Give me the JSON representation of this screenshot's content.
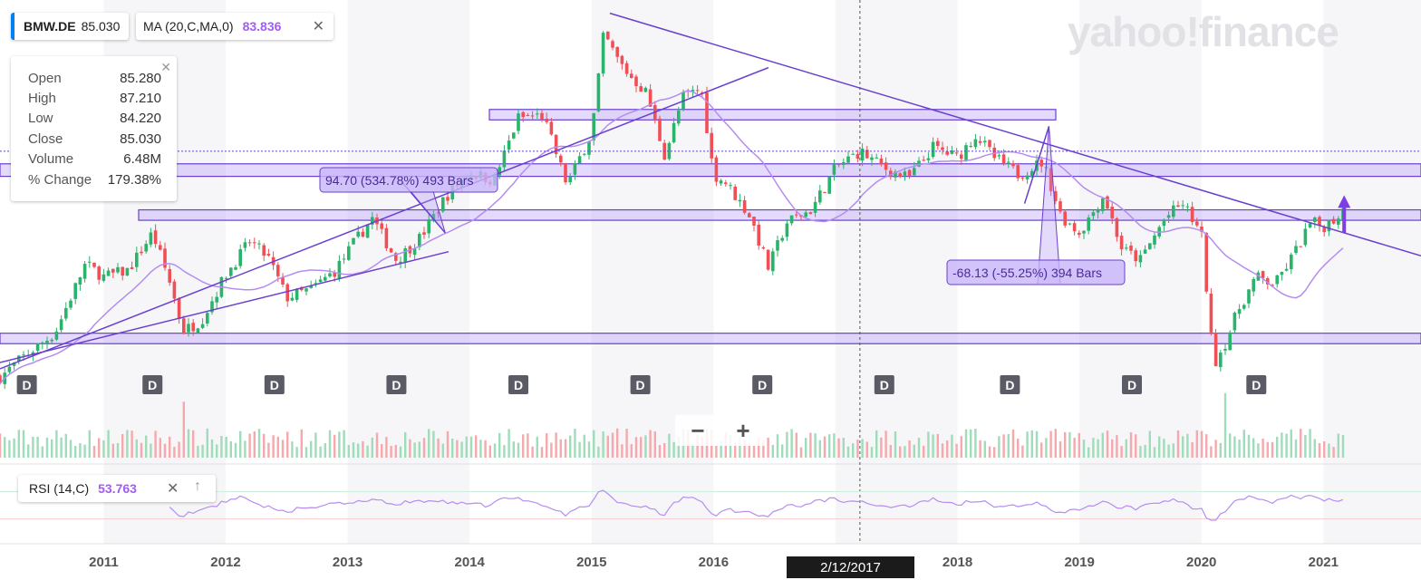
{
  "symbol": {
    "ticker": "BMW.DE",
    "price": "85.030"
  },
  "ma": {
    "label": "MA (20,C,MA,0)",
    "value": "83.836"
  },
  "ohlc": [
    {
      "label": "Open",
      "value": "85.280"
    },
    {
      "label": "High",
      "value": "87.210"
    },
    {
      "label": "Low",
      "value": "84.220"
    },
    {
      "label": "Close",
      "value": "85.030"
    },
    {
      "label": "Volume",
      "value": "6.48M"
    },
    {
      "label": "% Change",
      "value": "179.38%"
    }
  ],
  "rsi": {
    "label": "RSI (14,C)",
    "value": "53.763"
  },
  "brand": "yahoo!finance",
  "zoom": {
    "minus": "−",
    "plus": "+"
  },
  "crosshair_date": "2/12/2017",
  "icons": {
    "close": "close-icon",
    "up": "arrow-up-icon"
  },
  "colors": {
    "up": "#2ab36a",
    "down": "#f04f55",
    "ma": "#b58df0",
    "drawing": "#6a3fd0",
    "zone": "rgba(179,150,245,0.35)"
  },
  "chart_data": {
    "type": "candlestick",
    "title": "",
    "xlabel": "",
    "ylabel": "",
    "x_range": [
      2010.15,
      2021.8
    ],
    "ylim": [
      -2,
      180
    ],
    "x_tick_labels": [
      "2011",
      "2012",
      "2013",
      "2014",
      "2015",
      "2016",
      "2017",
      "2018",
      "2019",
      "2020",
      "2021"
    ],
    "x_ticks": [
      2011,
      2012,
      2013,
      2014,
      2015,
      2016,
      2017,
      2018,
      2019,
      2020,
      2021
    ],
    "close_series": {
      "name": "",
      "x": [
        2010.15,
        2010.35,
        2010.6,
        2010.85,
        2011.0,
        2011.2,
        2011.4,
        2011.55,
        2011.65,
        2011.8,
        2012.0,
        2012.2,
        2012.35,
        2012.5,
        2012.7,
        2012.9,
        2013.05,
        2013.2,
        2013.4,
        2013.6,
        2013.8,
        2014.0,
        2014.2,
        2014.4,
        2014.6,
        2014.8,
        2015.0,
        2015.1,
        2015.2,
        2015.3,
        2015.45,
        2015.6,
        2015.75,
        2015.9,
        2016.0,
        2016.1,
        2016.3,
        2016.45,
        2016.6,
        2016.8,
        2017.0,
        2017.2,
        2017.4,
        2017.6,
        2017.8,
        2018.0,
        2018.15,
        2018.3,
        2018.5,
        2018.7,
        2018.85,
        2019.0,
        2019.2,
        2019.35,
        2019.5,
        2019.7,
        2019.85,
        2020.0,
        2020.1,
        2020.2,
        2020.3,
        2020.45,
        2020.6,
        2020.75,
        2020.9,
        2021.0,
        2021.1,
        2021.18
      ],
      "y": [
        4,
        14,
        25,
        58,
        52,
        55,
        73,
        48,
        26,
        31,
        53,
        69,
        61,
        42,
        46,
        55,
        68,
        80,
        60,
        71,
        90,
        102,
        98,
        128,
        129,
        96,
        121,
        168,
        157,
        149,
        140,
        110,
        138,
        142,
        101,
        97,
        81,
        56,
        78,
        84,
        104,
        112,
        104,
        99,
        114,
        109,
        120,
        109,
        101,
        107,
        81,
        73,
        91,
        65,
        60,
        80,
        87,
        72,
        10,
        21,
        36,
        52,
        48,
        62,
        78,
        76,
        80,
        85.03
      ]
    },
    "ma_series": {
      "name": "MA (20,C,MA,0)",
      "last": 83.836
    },
    "horizontal_lines": [
      {
        "y": 112
      }
    ],
    "zones": [
      [
        100,
        106
      ],
      [
        79,
        84
      ],
      [
        20,
        25
      ],
      [
        127,
        132
      ]
    ],
    "trendlines": [
      {
        "from": [
          2010.15,
          8
        ],
        "to": [
          2016.45,
          152
        ]
      },
      {
        "from": [
          2015.15,
          178
        ],
        "to": [
          2021.8,
          62
        ]
      }
    ],
    "measures": [
      {
        "label": "94.70 (534.78%) 493 Bars",
        "from": [
          2013.8,
          73
        ],
        "to": [
          2013.45,
          97
        ]
      },
      {
        "label": "-68.13 (-55.25%) 394 Bars",
        "from": [
          2018.75,
          124
        ],
        "to": [
          2018.55,
          87
        ]
      }
    ],
    "annotation_arrow": {
      "x": 2021.17,
      "from": 73,
      "to": 91
    },
    "dividend_markers": {
      "label": "D",
      "x": [
        2010.37,
        2011.4,
        2012.4,
        2013.4,
        2014.4,
        2015.4,
        2016.4,
        2017.4,
        2018.43,
        2019.43,
        2020.45
      ]
    },
    "volume_max": 100,
    "volume_spikes": [
      {
        "x": 2015.7,
        "v": 100
      },
      {
        "x": 2020.2,
        "v": 75
      },
      {
        "x": 2011.65,
        "v": 65
      }
    ],
    "rsi": {
      "name": "RSI (14,C)",
      "last": 53.763,
      "ylim": [
        0,
        100
      ],
      "upper": 70,
      "lower": 30
    }
  }
}
